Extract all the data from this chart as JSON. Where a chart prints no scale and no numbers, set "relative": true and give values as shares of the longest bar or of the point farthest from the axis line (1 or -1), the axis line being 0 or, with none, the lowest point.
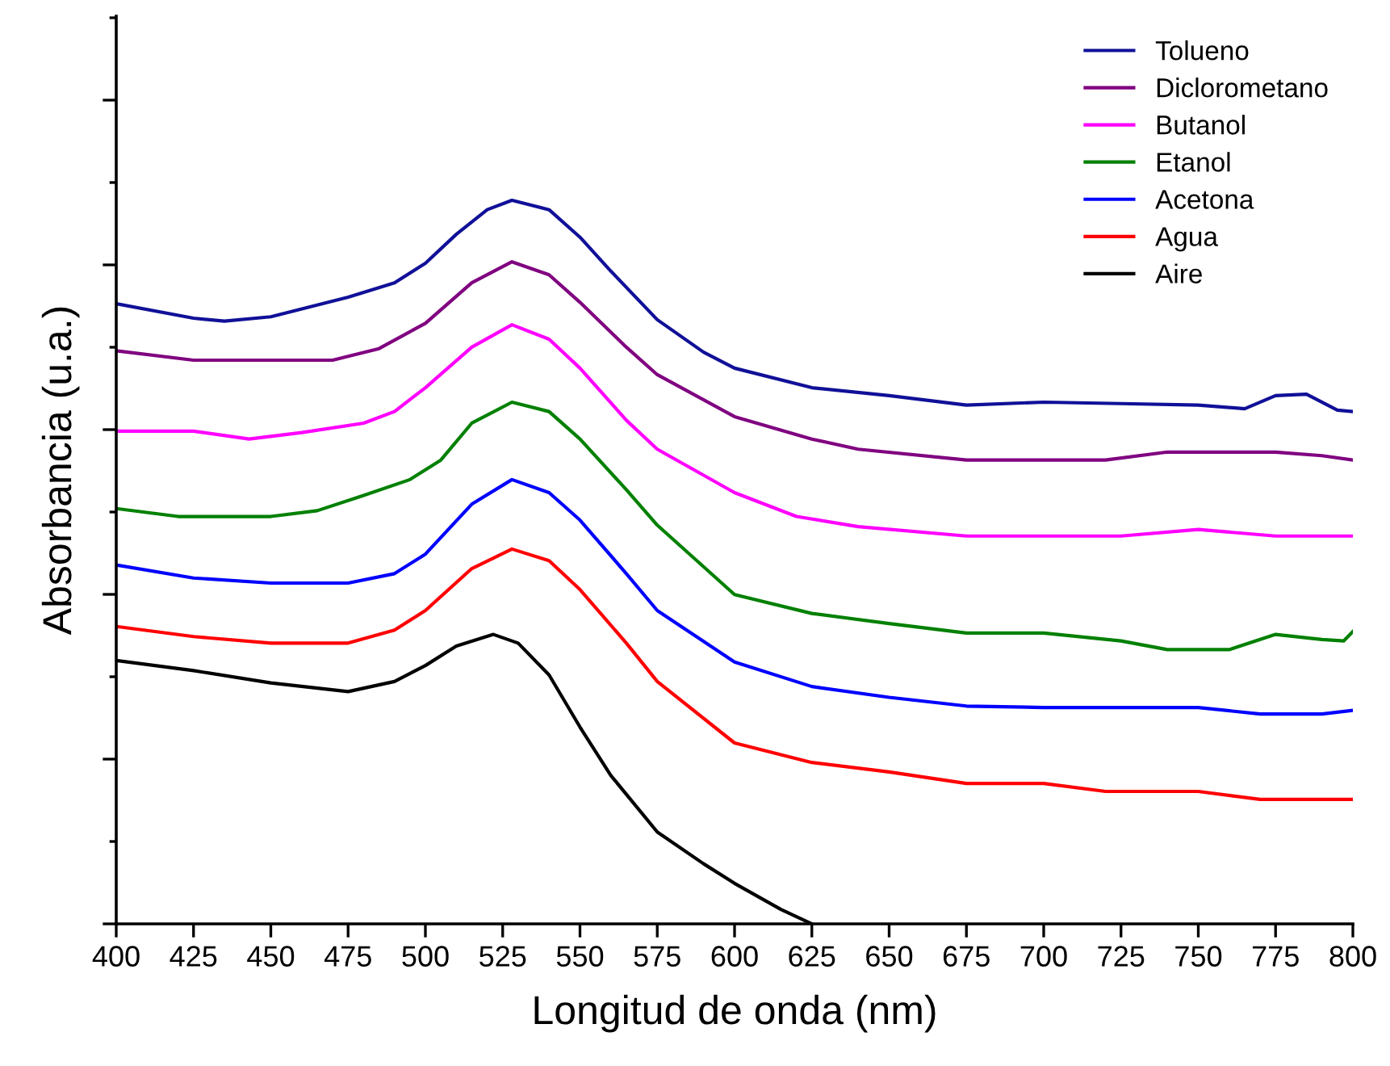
{
  "chart_data": {
    "type": "line",
    "xlabel": "Longitud de onda (nm)",
    "ylabel": "Absorbancia (u.a.)",
    "relative": true,
    "xlim": [
      400,
      800
    ],
    "xticks": [
      400,
      425,
      450,
      475,
      500,
      525,
      550,
      575,
      600,
      625,
      650,
      675,
      700,
      725,
      750,
      775,
      800
    ],
    "tick_labels": "x",
    "grid": false,
    "legend": "top right",
    "marker": "none",
    "line_style": "solid",
    "series": [
      {
        "name": "Tolueno",
        "color": "#101098",
        "x": [
          400,
          425,
          435,
          450,
          475,
          490,
          500,
          510,
          520,
          528,
          540,
          550,
          560,
          575,
          590,
          600,
          625,
          650,
          675,
          700,
          725,
          750,
          765,
          775,
          785,
          795,
          800
        ],
        "values": [
          0.857,
          0.837,
          0.833,
          0.839,
          0.866,
          0.886,
          0.913,
          0.953,
          0.987,
          1.0,
          0.987,
          0.949,
          0.902,
          0.835,
          0.79,
          0.768,
          0.741,
          0.73,
          0.717,
          0.721,
          0.719,
          0.717,
          0.712,
          0.73,
          0.732,
          0.71,
          0.708
        ]
      },
      {
        "name": "Diclorometano",
        "color": "#800080",
        "x": [
          400,
          425,
          450,
          470,
          485,
          500,
          515,
          528,
          540,
          550,
          565,
          575,
          600,
          625,
          640,
          675,
          700,
          720,
          740,
          775,
          790,
          800
        ],
        "values": [
          0.792,
          0.779,
          0.779,
          0.779,
          0.795,
          0.83,
          0.886,
          0.915,
          0.897,
          0.859,
          0.797,
          0.759,
          0.701,
          0.67,
          0.656,
          0.641,
          0.641,
          0.641,
          0.652,
          0.652,
          0.647,
          0.641
        ]
      },
      {
        "name": "Butanol",
        "color": "#ff00ff",
        "x": [
          400,
          425,
          443,
          460,
          480,
          490,
          500,
          515,
          528,
          540,
          550,
          565,
          575,
          600,
          620,
          640,
          675,
          700,
          725,
          750,
          775,
          800
        ],
        "values": [
          0.681,
          0.681,
          0.67,
          0.679,
          0.692,
          0.708,
          0.741,
          0.797,
          0.828,
          0.808,
          0.768,
          0.696,
          0.656,
          0.596,
          0.563,
          0.549,
          0.536,
          0.536,
          0.536,
          0.545,
          0.536,
          0.536
        ]
      },
      {
        "name": "Etanol",
        "color": "#008000",
        "x": [
          400,
          420,
          450,
          465,
          480,
          495,
          505,
          515,
          528,
          540,
          550,
          565,
          575,
          600,
          625,
          650,
          675,
          700,
          725,
          740,
          760,
          775,
          790,
          797,
          800
        ],
        "values": [
          0.574,
          0.563,
          0.563,
          0.571,
          0.592,
          0.614,
          0.641,
          0.692,
          0.721,
          0.708,
          0.67,
          0.6,
          0.551,
          0.455,
          0.429,
          0.415,
          0.402,
          0.402,
          0.391,
          0.379,
          0.379,
          0.4,
          0.393,
          0.391,
          0.404
        ]
      },
      {
        "name": "Acetona",
        "color": "#0000ff",
        "x": [
          400,
          425,
          450,
          475,
          490,
          500,
          515,
          528,
          540,
          550,
          565,
          575,
          600,
          625,
          650,
          675,
          700,
          750,
          770,
          790,
          800
        ],
        "values": [
          0.496,
          0.478,
          0.471,
          0.471,
          0.484,
          0.511,
          0.58,
          0.614,
          0.596,
          0.558,
          0.484,
          0.433,
          0.362,
          0.328,
          0.313,
          0.301,
          0.299,
          0.299,
          0.29,
          0.29,
          0.295
        ]
      },
      {
        "name": "Agua",
        "color": "#ff0000",
        "x": [
          400,
          425,
          450,
          475,
          490,
          500,
          515,
          528,
          540,
          550,
          565,
          575,
          600,
          625,
          650,
          675,
          700,
          720,
          750,
          770,
          800
        ],
        "values": [
          0.411,
          0.397,
          0.388,
          0.388,
          0.406,
          0.433,
          0.491,
          0.518,
          0.502,
          0.462,
          0.388,
          0.335,
          0.25,
          0.223,
          0.21,
          0.194,
          0.194,
          0.183,
          0.183,
          0.172,
          0.172
        ]
      },
      {
        "name": "Aire",
        "color": "#000000",
        "x": [
          400,
          425,
          450,
          475,
          490,
          500,
          510,
          522,
          530,
          540,
          550,
          560,
          575,
          590,
          600,
          615,
          625
        ],
        "values": [
          0.364,
          0.35,
          0.333,
          0.321,
          0.335,
          0.357,
          0.384,
          0.4,
          0.388,
          0.344,
          0.272,
          0.205,
          0.127,
          0.083,
          0.056,
          0.02,
          0
        ]
      }
    ]
  }
}
